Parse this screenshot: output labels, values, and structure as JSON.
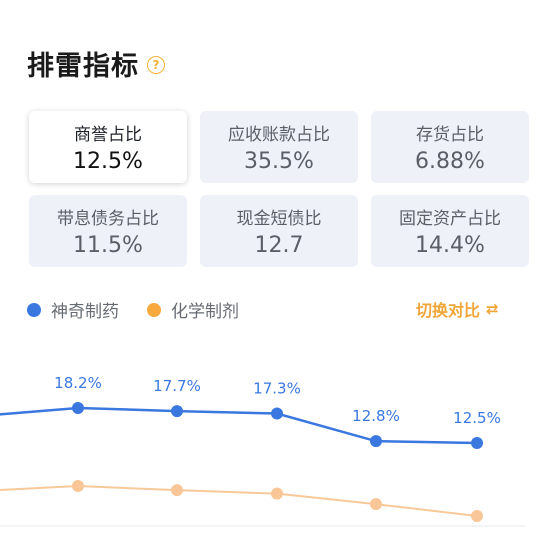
{
  "header": {
    "title": "排雷指标",
    "help_icon": "?"
  },
  "metrics": [
    {
      "label": "商誉占比",
      "value": "12.5%",
      "active": true
    },
    {
      "label": "应收账款占比",
      "value": "35.5%",
      "active": false
    },
    {
      "label": "存货占比",
      "value": "6.88%",
      "active": false
    },
    {
      "label": "带息债务占比",
      "value": "11.5%",
      "active": false
    },
    {
      "label": "现金短债比",
      "value": "12.7",
      "active": false
    },
    {
      "label": "固定资产占比",
      "value": "14.4%",
      "active": false
    }
  ],
  "legend": {
    "series1": "神奇制药",
    "series2": "化学制剂"
  },
  "switch": {
    "label": "切换对比",
    "icon": "切换-icon"
  },
  "colors": {
    "series1": "#3a78e0",
    "series2": "#f7a93f",
    "accent": "#f0a63a"
  },
  "chart_data": {
    "type": "line",
    "series": [
      {
        "name": "神奇制药",
        "values": [
          null,
          18.2,
          17.7,
          17.3,
          12.8,
          12.5
        ],
        "labels": [
          "",
          "18.2%",
          "17.7%",
          "17.3%",
          "12.8%",
          "12.5%"
        ]
      },
      {
        "name": "化学制剂",
        "values": [
          null,
          6.5,
          5.9,
          5.4,
          3.9,
          2.2
        ]
      }
    ]
  }
}
